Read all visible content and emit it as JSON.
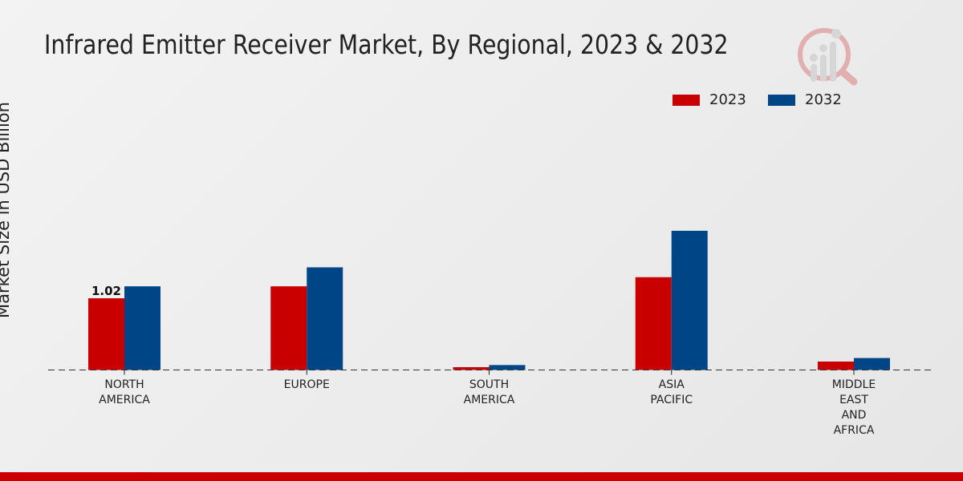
{
  "chart_data": {
    "type": "bar",
    "title": "Infrared Emitter Receiver Market, By Regional, 2023 & 2032",
    "ylabel": "Market Size in USD Billion",
    "xlabel": "",
    "categories": [
      [
        "NORTH",
        "AMERICA"
      ],
      [
        "EUROPE"
      ],
      [
        "SOUTH",
        "AMERICA"
      ],
      [
        "ASIA",
        "PACIFIC"
      ],
      [
        "MIDDLE",
        "EAST",
        "AND",
        "AFRICA"
      ]
    ],
    "series": [
      {
        "name": "2023",
        "color": "#c80000",
        "values": [
          1.02,
          1.19,
          0.04,
          1.32,
          0.12
        ]
      },
      {
        "name": "2032",
        "color": "#004687",
        "values": [
          1.19,
          1.46,
          0.07,
          1.98,
          0.17
        ]
      }
    ],
    "data_labels": [
      {
        "series": 0,
        "index": 0,
        "text": "1.02"
      }
    ],
    "ylim": [
      0,
      4.1
    ],
    "grid": false,
    "legend_placement": "top-right",
    "baseline_style": "dashed"
  }
}
